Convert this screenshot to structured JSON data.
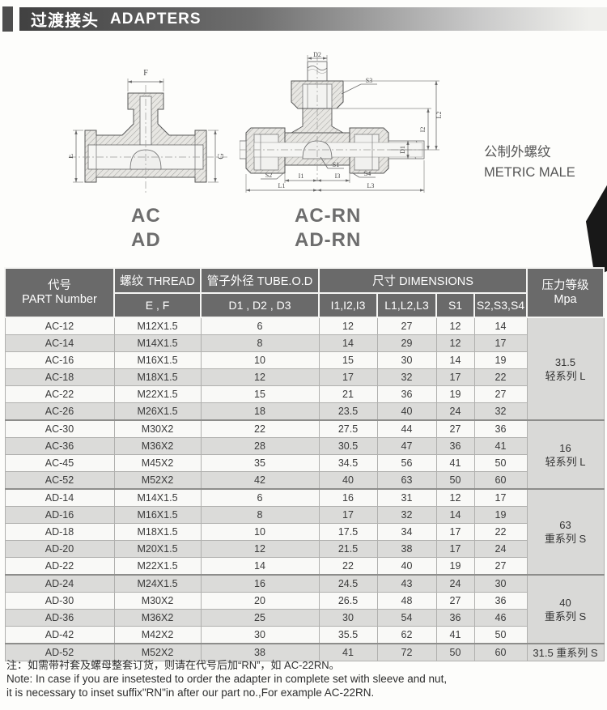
{
  "header": {
    "title_zh": "过渡接头",
    "title_en": "ADAPTERS"
  },
  "figures": {
    "left": {
      "caption1": "AC",
      "caption2": "AD",
      "dims": {
        "f": "F",
        "e": "E",
        "g": "G"
      }
    },
    "right": {
      "caption1": "AC-RN",
      "caption2": "AD-RN",
      "dims": {
        "d2": "D2",
        "s3": "S3",
        "l2": "L2",
        "i2": "I2",
        "d1": "D1",
        "s1": "S1",
        "s2": "S2",
        "s4": "S4",
        "i1": "I1",
        "i3": "I3",
        "l1": "L1",
        "l3": "L3"
      }
    },
    "type_note_zh": "公制外螺纹",
    "type_note_en": "METRIC MALE"
  },
  "colors": {
    "title_bar_dark": "#474747",
    "table_header_bg": "#6a6a6a",
    "row_alt_bg": "#dbdbd9",
    "pressure_col_bg": "#d9d9d7"
  },
  "table": {
    "header": {
      "col_part_zh": "代号",
      "col_part_en": "PART Number",
      "col_thread": "螺纹 THREAD",
      "col_thread_sub": "E , F",
      "col_tube": "管子外径 TUBE.O.D",
      "col_tube_sub": "D1 , D2 , D3",
      "col_dims": "尺寸 DIMENSIONS",
      "col_dims_sub_1": "I1,I2,I3",
      "col_dims_sub_2": "L1,L2,L3",
      "col_dims_sub_3": "S1",
      "col_dims_sub_4": "S2,S3,S4",
      "col_pressure_zh": "压力等级",
      "col_pressure_en": "Mpa"
    },
    "rows": [
      {
        "part": "AC-12",
        "thread": "M12X1.5",
        "tube": "6",
        "i123": "12",
        "l123": "27",
        "s1": "12",
        "s234": "14"
      },
      {
        "part": "AC-14",
        "thread": "M14X1.5",
        "tube": "8",
        "i123": "14",
        "l123": "29",
        "s1": "12",
        "s234": "17"
      },
      {
        "part": "AC-16",
        "thread": "M16X1.5",
        "tube": "10",
        "i123": "15",
        "l123": "30",
        "s1": "14",
        "s234": "19"
      },
      {
        "part": "AC-18",
        "thread": "M18X1.5",
        "tube": "12",
        "i123": "17",
        "l123": "32",
        "s1": "17",
        "s234": "22"
      },
      {
        "part": "AC-22",
        "thread": "M22X1.5",
        "tube": "15",
        "i123": "21",
        "l123": "36",
        "s1": "19",
        "s234": "27"
      },
      {
        "part": "AC-26",
        "thread": "M26X1.5",
        "tube": "18",
        "i123": "23.5",
        "l123": "40",
        "s1": "24",
        "s234": "32"
      },
      {
        "part": "AC-30",
        "thread": "M30X2",
        "tube": "22",
        "i123": "27.5",
        "l123": "44",
        "s1": "27",
        "s234": "36"
      },
      {
        "part": "AC-36",
        "thread": "M36X2",
        "tube": "28",
        "i123": "30.5",
        "l123": "47",
        "s1": "36",
        "s234": "41"
      },
      {
        "part": "AC-45",
        "thread": "M45X2",
        "tube": "35",
        "i123": "34.5",
        "l123": "56",
        "s1": "41",
        "s234": "50"
      },
      {
        "part": "AC-52",
        "thread": "M52X2",
        "tube": "42",
        "i123": "40",
        "l123": "63",
        "s1": "50",
        "s234": "60"
      },
      {
        "part": "AD-14",
        "thread": "M14X1.5",
        "tube": "6",
        "i123": "16",
        "l123": "31",
        "s1": "12",
        "s234": "17"
      },
      {
        "part": "AD-16",
        "thread": "M16X1.5",
        "tube": "8",
        "i123": "17",
        "l123": "32",
        "s1": "14",
        "s234": "19"
      },
      {
        "part": "AD-18",
        "thread": "M18X1.5",
        "tube": "10",
        "i123": "17.5",
        "l123": "34",
        "s1": "17",
        "s234": "22"
      },
      {
        "part": "AD-20",
        "thread": "M20X1.5",
        "tube": "12",
        "i123": "21.5",
        "l123": "38",
        "s1": "17",
        "s234": "24"
      },
      {
        "part": "AD-22",
        "thread": "M22X1.5",
        "tube": "14",
        "i123": "22",
        "l123": "40",
        "s1": "19",
        "s234": "27"
      },
      {
        "part": "AD-24",
        "thread": "M24X1.5",
        "tube": "16",
        "i123": "24.5",
        "l123": "43",
        "s1": "24",
        "s234": "30"
      },
      {
        "part": "AD-30",
        "thread": "M30X2",
        "tube": "20",
        "i123": "26.5",
        "l123": "48",
        "s1": "27",
        "s234": "36"
      },
      {
        "part": "AD-36",
        "thread": "M36X2",
        "tube": "25",
        "i123": "30",
        "l123": "54",
        "s1": "36",
        "s234": "46"
      },
      {
        "part": "AD-42",
        "thread": "M42X2",
        "tube": "30",
        "i123": "35.5",
        "l123": "62",
        "s1": "41",
        "s234": "50"
      },
      {
        "part": "AD-52",
        "thread": "M52X2",
        "tube": "38",
        "i123": "41",
        "l123": "72",
        "s1": "50",
        "s234": "60"
      }
    ],
    "pressure_groups": [
      {
        "row_span": 6,
        "line1": "31.5",
        "line2": "轻系列 L"
      },
      {
        "row_span": 4,
        "line1": "16",
        "line2": "轻系列 L"
      },
      {
        "row_span": 5,
        "line1": "63",
        "line2": "重系列 S"
      },
      {
        "row_span": 4,
        "line1": "40",
        "line2": "重系列 S"
      },
      {
        "row_span": 1,
        "line1": "31.5 重系列 S",
        "line2": ""
      }
    ]
  },
  "notes": {
    "zh": "注：如需带衬套及螺母整套订货，则请在代号后加“RN”，如 AC-22RN。",
    "en1": "Note: In case if you are insetested to order the adapter in complete set with sleeve and nut,",
    "en2": "it is necessary to inset suffix\"RN\"in after our part no.,For example AC-22RN."
  }
}
